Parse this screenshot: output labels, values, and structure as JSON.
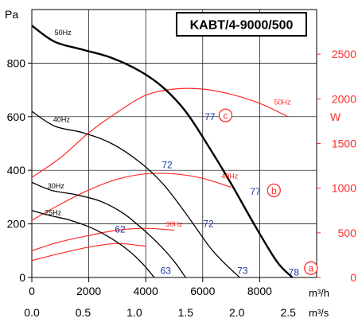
{
  "chart_data": {
    "type": "line",
    "title": "KABT/4-9000/500",
    "x_unit": "m³/h",
    "x2_unit": "m³/s",
    "y_unit": "Pa",
    "y2_unit": "W",
    "xlim": [
      0,
      10000
    ],
    "ylim": [
      0,
      1000
    ],
    "y2lim": [
      0,
      3000
    ],
    "grid": true,
    "x_ticks": [
      {
        "v": 0,
        "label": "0"
      },
      {
        "v": 2000,
        "label": "2000"
      },
      {
        "v": 4000,
        "label": "4000"
      },
      {
        "v": 6000,
        "label": "6000"
      },
      {
        "v": 8000,
        "label": "8000"
      }
    ],
    "x2_ticks": [
      {
        "v": 0.0,
        "label": "0.0"
      },
      {
        "v": 0.5,
        "label": "0.5"
      },
      {
        "v": 1.0,
        "label": "1.0"
      },
      {
        "v": 1.5,
        "label": "1.5"
      },
      {
        "v": 2.0,
        "label": "2.0"
      },
      {
        "v": 2.5,
        "label": "2.5"
      }
    ],
    "y_ticks": [
      {
        "v": 0,
        "label": "0"
      },
      {
        "v": 200,
        "label": "200"
      },
      {
        "v": 400,
        "label": "400"
      },
      {
        "v": 600,
        "label": "600"
      },
      {
        "v": 800,
        "label": "800"
      }
    ],
    "y2_ticks": [
      {
        "v": 0,
        "label": "0"
      },
      {
        "v": 500,
        "label": "500"
      },
      {
        "v": 1000,
        "label": "1000"
      },
      {
        "v": 1500,
        "label": "1500"
      },
      {
        "v": 2000,
        "label": "2000"
      },
      {
        "v": 2500,
        "label": "2500"
      }
    ],
    "pressure_series": [
      {
        "name": "50Hz",
        "width": 2.4,
        "label_x": 800,
        "label_y": 905,
        "x": [
          0,
          800,
          1800,
          2800,
          3800,
          4600,
          5400,
          6200,
          7000,
          7800,
          8600,
          9150
        ],
        "y": [
          940,
          880,
          850,
          820,
          770,
          710,
          620,
          490,
          350,
          200,
          60,
          0
        ]
      },
      {
        "name": "40Hz",
        "width": 1.3,
        "label_x": 750,
        "label_y": 580,
        "x": [
          0,
          800,
          1800,
          2800,
          3800,
          4600,
          5400,
          6200,
          6700,
          7300
        ],
        "y": [
          620,
          565,
          540,
          500,
          430,
          350,
          240,
          120,
          60,
          0
        ]
      },
      {
        "name": "30Hz",
        "width": 1.3,
        "label_x": 550,
        "label_y": 333,
        "x": [
          0,
          700,
          1500,
          2400,
          3200,
          3900,
          4500,
          5000,
          5400
        ],
        "y": [
          355,
          325,
          310,
          285,
          240,
          180,
          120,
          60,
          0
        ]
      },
      {
        "name": "25Hz",
        "width": 1.3,
        "label_x": 450,
        "label_y": 233,
        "x": [
          0,
          600,
          1300,
          2100,
          2800,
          3400,
          3900,
          4300
        ],
        "y": [
          250,
          232,
          215,
          185,
          145,
          100,
          50,
          0
        ]
      }
    ],
    "power_series": [
      {
        "name": "50Hz",
        "label_x": 8800,
        "label_y": 1935,
        "x": [
          0,
          1000,
          2000,
          3000,
          4000,
          5000,
          6000,
          7000,
          8000,
          9000
        ],
        "y": [
          1120,
          1340,
          1620,
          1850,
          2040,
          2110,
          2110,
          2050,
          1950,
          1800
        ]
      },
      {
        "name": "40Hz",
        "label_x": 6950,
        "label_y": 1110,
        "x": [
          0,
          1000,
          2000,
          3000,
          4000,
          5000,
          6000,
          7000
        ],
        "y": [
          640,
          820,
          980,
          1100,
          1160,
          1160,
          1110,
          1010
        ]
      },
      {
        "name": "30Hz",
        "label_x": 5000,
        "label_y": 570,
        "x": [
          0,
          1000,
          2000,
          3000,
          4000,
          5000
        ],
        "y": [
          300,
          400,
          470,
          530,
          550,
          530
        ]
      },
      {
        "name": "",
        "label_x": null,
        "label_y": null,
        "x": [
          0,
          1000,
          2000,
          3000,
          4000
        ],
        "y": [
          190,
          270,
          340,
          380,
          350
        ]
      }
    ],
    "efficiency_labels": [
      {
        "text": "77",
        "x": 6250,
        "y": 600
      },
      {
        "text": "72",
        "x": 4750,
        "y": 420
      },
      {
        "text": "77",
        "x": 7850,
        "y": 320
      },
      {
        "text": "72",
        "x": 6200,
        "y": 200
      },
      {
        "text": "62",
        "x": 3100,
        "y": 180
      },
      {
        "text": "73",
        "x": 7400,
        "y": 25
      },
      {
        "text": "63",
        "x": 4700,
        "y": 25
      },
      {
        "text": "78",
        "x": 9200,
        "y": 20
      }
    ],
    "point_markers": [
      {
        "text": "c",
        "x": 6800,
        "y": 605
      },
      {
        "text": "b",
        "x": 8500,
        "y": 325
      },
      {
        "text": "a",
        "x": 9800,
        "y": 35
      }
    ],
    "colors": {
      "pressure": "#000000",
      "power": "#ff2b2b",
      "efficiency": "#1a3aa0",
      "marker": "#ff2b2b",
      "grid": "#000000"
    }
  }
}
